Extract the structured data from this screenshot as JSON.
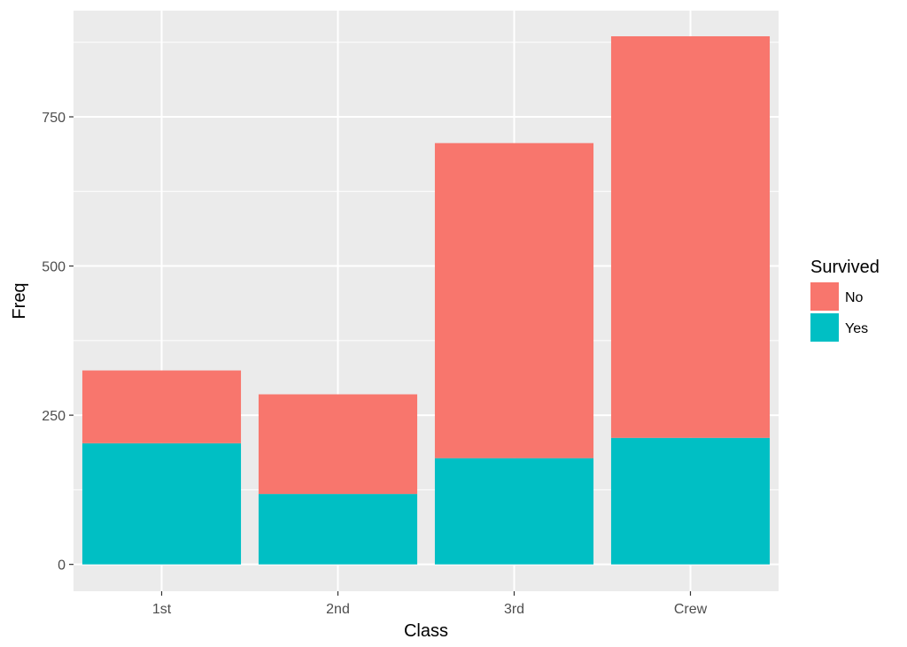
{
  "chart_data": {
    "type": "bar",
    "stacked": true,
    "categories": [
      "1st",
      "2nd",
      "3rd",
      "Crew"
    ],
    "series": [
      {
        "name": "No",
        "color": "#F8766D",
        "values": [
          122,
          167,
          528,
          673
        ]
      },
      {
        "name": "Yes",
        "color": "#00BFC4",
        "values": [
          203,
          118,
          178,
          212
        ]
      }
    ],
    "xlabel": "Class",
    "ylabel": "Freq",
    "ylim": [
      -45,
      928
    ],
    "yticks": [
      0,
      250,
      500,
      750
    ],
    "ytick_labels": [
      "0",
      "250",
      "500",
      "750"
    ],
    "grid": true,
    "panel_background": "#EBEBEB",
    "legend": {
      "title": "Survived",
      "position": "right",
      "order": [
        "No",
        "Yes"
      ]
    }
  }
}
